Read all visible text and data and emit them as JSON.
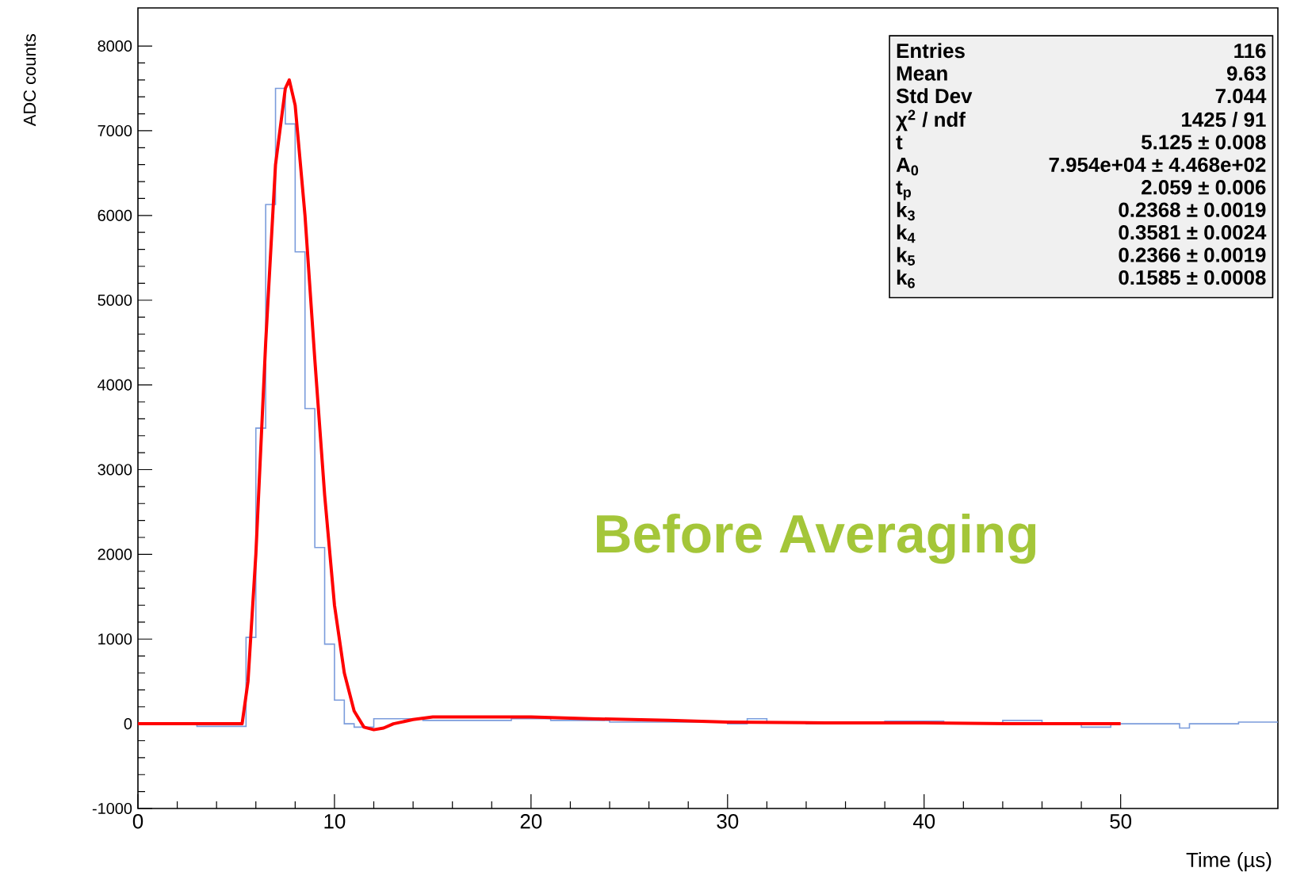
{
  "chart_data": {
    "type": "histogram",
    "xlabel": "Time (µs)",
    "ylabel": "ADC counts",
    "xlim": [
      0,
      58
    ],
    "ylim": [
      -1000,
      8450
    ],
    "xticks": [
      0,
      10,
      20,
      30,
      40,
      50
    ],
    "yticks": [
      -1000,
      0,
      1000,
      2000,
      3000,
      4000,
      5000,
      6000,
      7000,
      8000
    ],
    "series": [
      {
        "color": "#7b9cdc",
        "bins": [
          0,
          3,
          5.5,
          6,
          6.5,
          7,
          7.5,
          8,
          8.5,
          9,
          9.5,
          10,
          10.5,
          11,
          12,
          14.5,
          16.5,
          19,
          21,
          24,
          30,
          31,
          32,
          34,
          38,
          41,
          44,
          46,
          48,
          49.5,
          53,
          53.5,
          56,
          58
        ],
        "values": [
          0,
          -30,
          1020,
          3490,
          6130,
          7500,
          7080,
          5570,
          3720,
          2080,
          940,
          280,
          0,
          -40,
          60,
          40,
          40,
          60,
          40,
          20,
          0,
          60,
          20,
          0,
          30,
          0,
          40,
          0,
          -40,
          0,
          -50,
          0,
          20
        ]
      },
      {
        "type": "line",
        "color": "#ff0000",
        "x": [
          0,
          5.3,
          5.6,
          6,
          6.5,
          7,
          7.5,
          7.7,
          8,
          8.5,
          9,
          9.5,
          10,
          10.5,
          11,
          11.5,
          12,
          12.5,
          13,
          14,
          15,
          17,
          20,
          23,
          27,
          30,
          35,
          40,
          45,
          50
        ],
        "values": [
          0,
          0,
          500,
          2000,
          4500,
          6600,
          7500,
          7600,
          7300,
          6000,
          4300,
          2700,
          1400,
          600,
          150,
          -40,
          -70,
          -50,
          0,
          50,
          80,
          80,
          80,
          60,
          40,
          20,
          10,
          10,
          0,
          0
        ]
      }
    ],
    "annotations": [
      "Entries",
      "116",
      "Mean",
      "9.63",
      "Std Dev",
      "7.044",
      "χ$^{2}$ / ndf",
      "1425 / 91",
      "t",
      "5.125 ± 0.008",
      "A$_{0}$",
      "7.954e+04 ± 4.468e+02",
      "t$_{p}$",
      "2.059 ± 0.006",
      "k$_{3}$",
      "0.2368 ± 0.0019",
      "k$_{4}$",
      "0.3581 ± 0.0024",
      "k$_{5}$",
      "0.2366 ± 0.0019",
      "k$_{6}$",
      "0.1585 ± 0.0008",
      "Before Averaging"
    ]
  }
}
